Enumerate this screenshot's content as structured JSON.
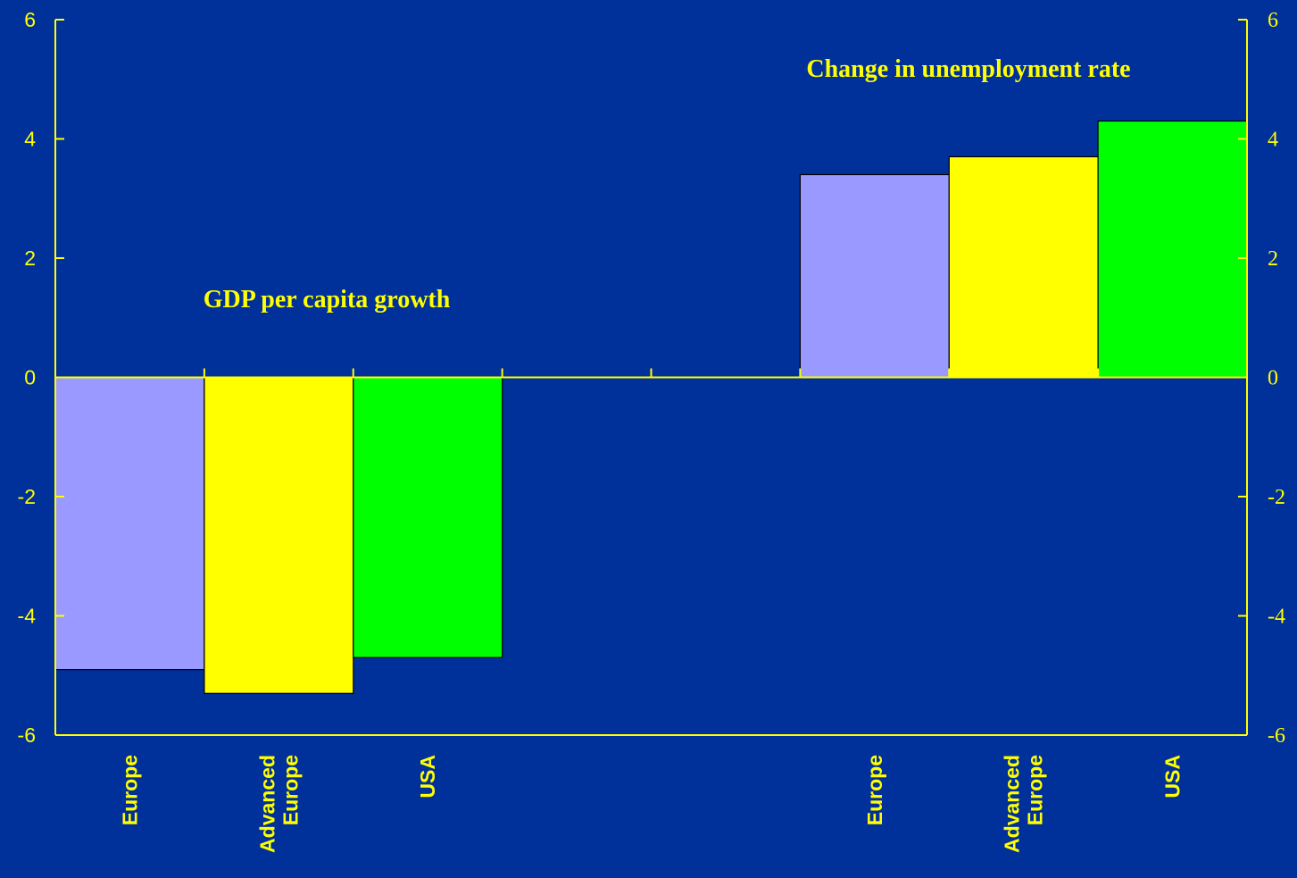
{
  "chart_data": {
    "type": "bar",
    "title": "",
    "xlabel": "",
    "ylabel": "",
    "ylim": [
      -6,
      6
    ],
    "yticks_left": [
      "6",
      "4",
      "2",
      "0",
      "-2",
      "-4",
      "-6"
    ],
    "yticks_right": [
      "6",
      "4",
      "2",
      "0",
      "-2",
      "-4",
      "-6"
    ],
    "grid": false,
    "groups": [
      {
        "annotation": "GDP per capita growth",
        "categories": [
          [
            "Europe"
          ],
          [
            "Advanced",
            "Europe"
          ],
          [
            "USA"
          ]
        ],
        "values": [
          -4.9,
          -5.3,
          -4.7
        ]
      },
      {
        "annotation": "Change in unemployment rate",
        "categories": [
          [
            "Europe"
          ],
          [
            "Advanced",
            "Europe"
          ],
          [
            "USA"
          ]
        ],
        "values": [
          3.4,
          3.7,
          4.3
        ]
      }
    ],
    "bar_colors": [
      "#9999ff",
      "#ffff00",
      "#00ff00"
    ]
  },
  "colors": {
    "background": "#00309a",
    "axis": "#ffff00",
    "text": "#ffff00"
  }
}
